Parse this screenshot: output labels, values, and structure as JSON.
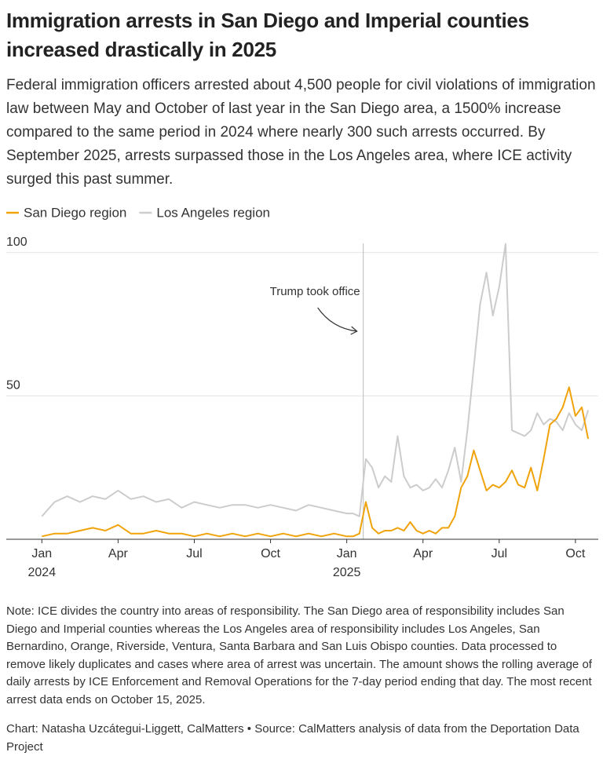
{
  "chart_data": {
    "type": "line",
    "title": "Immigration arrests in San Diego and Imperial counties increased drastically in 2025",
    "subtitle": "Federal immigration officers arrested about 4,500 people for civil violations of immigration law between May and October of last year in the San Diego area, a 1500% increase compared to the same period in 2024 where nearly 300 such arrests occurred. By September 2025, arrests surpassed those in the Los Angeles area, where ICE activity surged this past summer.",
    "x": [
      0,
      0.5,
      1,
      1.5,
      2,
      2.5,
      3,
      3.5,
      4,
      4.5,
      5,
      5.5,
      6,
      6.5,
      7,
      7.5,
      8,
      8.5,
      9,
      9.5,
      10,
      10.5,
      11,
      11.5,
      12,
      12.25,
      12.5,
      12.75,
      13,
      13.25,
      13.5,
      13.75,
      14,
      14.25,
      14.5,
      14.75,
      15,
      15.25,
      15.5,
      15.75,
      16,
      16.25,
      16.5,
      16.75,
      17,
      17.25,
      17.5,
      17.75,
      18,
      18.25,
      18.5,
      18.75,
      19,
      19.25,
      19.5,
      19.75,
      20,
      20.25,
      20.5,
      20.75,
      21,
      21.25,
      21.5
    ],
    "series": [
      {
        "name": "San Diego region",
        "color": "#f0a30a",
        "values": [
          1,
          2,
          2,
          3,
          4,
          3,
          5,
          2,
          2,
          3,
          2,
          2,
          1,
          2,
          1,
          2,
          1,
          2,
          1,
          2,
          1,
          2,
          1,
          2,
          1,
          1,
          2,
          13,
          4,
          2,
          3,
          3,
          4,
          3,
          6,
          3,
          2,
          3,
          2,
          4,
          4,
          8,
          18,
          22,
          31,
          24,
          17,
          19,
          18,
          20,
          24,
          19,
          18,
          25,
          17,
          28,
          40,
          42,
          46,
          53,
          43,
          46,
          35
        ]
      },
      {
        "name": "Los Angeles region",
        "color": "#cccccc",
        "values": [
          8,
          13,
          15,
          13,
          15,
          14,
          17,
          14,
          15,
          13,
          14,
          11,
          13,
          12,
          11,
          12,
          12,
          11,
          12,
          11,
          10,
          12,
          11,
          10,
          9,
          9,
          8,
          28,
          25,
          18,
          22,
          20,
          36,
          22,
          18,
          19,
          17,
          18,
          21,
          18,
          24,
          32,
          20,
          38,
          60,
          82,
          93,
          78,
          88,
          103,
          38,
          37,
          36,
          38,
          44,
          40,
          42,
          41,
          38,
          44,
          40,
          38,
          45
        ]
      }
    ],
    "xlim": [
      -1.4,
      21.9
    ],
    "xticks": [
      {
        "value": 0,
        "label": "Jan"
      },
      {
        "value": 3,
        "label": "Apr"
      },
      {
        "value": 6,
        "label": "Jul"
      },
      {
        "value": 9,
        "label": "Oct"
      },
      {
        "value": 12,
        "label": "Jan"
      },
      {
        "value": 15,
        "label": "Apr"
      },
      {
        "value": 18,
        "label": "Jul"
      },
      {
        "value": 21,
        "label": "Oct"
      }
    ],
    "x_year_labels": [
      {
        "value": 0,
        "label": "2024"
      },
      {
        "value": 12,
        "label": "2025"
      }
    ],
    "ylim": [
      0,
      104
    ],
    "yticks": [
      50,
      100
    ],
    "grid": true,
    "annotation": {
      "text": "Trump took office",
      "x": 12.65
    },
    "note": "Note: ICE divides the country into areas of responsibility. The San Diego area of responsibility includes San Diego and Imperial counties whereas the Los Angeles area of responsibility includes Los Angeles, San Bernardino, Orange, Riverside, Ventura, Santa Barbara and San Luis Obispo counties. Data processed to remove likely duplicates and cases where area of arrest was uncertain. The amount shows the rolling average of daily arrests by ICE Enforcement and Removal Operations for the 7-day period ending that day. The most recent arrest data ends on October 15, 2025.",
    "credit": "Chart: Natasha Uzcátegui-Liggett, CalMatters • Source: CalMatters analysis of data from the Deportation Data Project"
  }
}
